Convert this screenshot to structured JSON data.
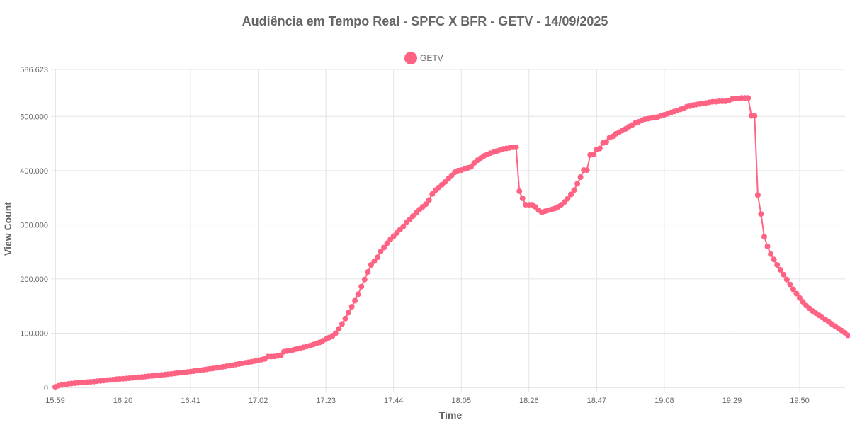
{
  "chart_data": {
    "type": "line",
    "title": "Audiência em Tempo Real - SPFC X BFR - GETV - 14/09/2025",
    "xlabel": "Time",
    "ylabel": "View Count",
    "legend": {
      "position": "top-center",
      "entries": [
        "GETV"
      ]
    },
    "grid": true,
    "ylim": [
      0,
      586623
    ],
    "y_ticks": [
      {
        "value": 0,
        "label": "0"
      },
      {
        "value": 100000,
        "label": "100.000"
      },
      {
        "value": 200000,
        "label": "200.000"
      },
      {
        "value": 300000,
        "label": "300.000"
      },
      {
        "value": 400000,
        "label": "400.000"
      },
      {
        "value": 500000,
        "label": "500.000"
      },
      {
        "value": 586623,
        "label": "586.623"
      }
    ],
    "x_start_minute": 959,
    "x_end_minute": 1204,
    "x_ticks": [
      {
        "minute": 959,
        "label": "15:59"
      },
      {
        "minute": 980,
        "label": "16:20"
      },
      {
        "minute": 1001,
        "label": "16:41"
      },
      {
        "minute": 1022,
        "label": "17:02"
      },
      {
        "minute": 1043,
        "label": "17:23"
      },
      {
        "minute": 1064,
        "label": "17:44"
      },
      {
        "minute": 1085,
        "label": "18:05"
      },
      {
        "minute": 1106,
        "label": "18:26"
      },
      {
        "minute": 1127,
        "label": "18:47"
      },
      {
        "minute": 1148,
        "label": "19:08"
      },
      {
        "minute": 1169,
        "label": "19:29"
      },
      {
        "minute": 1190,
        "label": "19:50"
      }
    ],
    "series": [
      {
        "name": "GETV",
        "color": "#ff6384",
        "interval_minutes": 1,
        "values": [
          1000,
          3000,
          4500,
          5500,
          6500,
          7200,
          7800,
          8300,
          8800,
          9300,
          9800,
          10300,
          10900,
          11500,
          12100,
          12700,
          13300,
          13900,
          14500,
          15100,
          15700,
          16000,
          16500,
          17000,
          17600,
          18200,
          18800,
          19400,
          20000,
          20600,
          21200,
          21800,
          22400,
          23000,
          23600,
          24300,
          25000,
          25700,
          26400,
          27100,
          27800,
          28500,
          29300,
          30100,
          30900,
          31700,
          32500,
          33300,
          34200,
          35100,
          36000,
          37000,
          38000,
          39000,
          40000,
          41000,
          42100,
          43200,
          44300,
          45400,
          46500,
          47600,
          48800,
          50000,
          51200,
          52500,
          57000,
          57000,
          57200,
          58000,
          59000,
          66000,
          67000,
          68000,
          69500,
          71000,
          72500,
          74000,
          75500,
          77000,
          79000,
          81000,
          83000,
          86000,
          89000,
          92000,
          95000,
          100000,
          108000,
          117000,
          127000,
          138000,
          149000,
          160000,
          172000,
          186000,
          199000,
          213000,
          226000,
          233000,
          240000,
          251000,
          258000,
          266000,
          273000,
          279000,
          285000,
          291000,
          297000,
          305000,
          310000,
          316000,
          322000,
          328000,
          333000,
          338000,
          346000,
          357000,
          364000,
          369000,
          374000,
          379000,
          385000,
          391000,
          397000,
          400000,
          401000,
          403000,
          405000,
          407000,
          414000,
          419000,
          423000,
          427000,
          430000,
          432000,
          434000,
          436000,
          438000,
          440000,
          441000,
          442000,
          443000,
          443000,
          362000,
          349000,
          337000,
          337000,
          337000,
          333000,
          327000,
          323000,
          325000,
          327000,
          328000,
          330000,
          333000,
          337000,
          342000,
          348000,
          356000,
          364000,
          376000,
          388000,
          401000,
          401000,
          429000,
          430000,
          439000,
          441000,
          451000,
          453000,
          461000,
          463000,
          468000,
          471000,
          474000,
          477000,
          481000,
          484000,
          488000,
          490000,
          493000,
          495000,
          496000,
          497000,
          498000,
          499000,
          501000,
          503000,
          505000,
          507000,
          509000,
          511000,
          513000,
          515000,
          518000,
          519000,
          521000,
          522000,
          523000,
          524000,
          525000,
          526000,
          527000,
          527000,
          528000,
          528000,
          528000,
          529000,
          532000,
          533000,
          533000,
          534000,
          534000,
          534000,
          501000,
          501000,
          355000,
          320000,
          278000,
          260000,
          246000,
          236000,
          226000,
          217000,
          208000,
          199000,
          190000,
          181000,
          173000,
          165000,
          158000,
          151000,
          146000,
          141000,
          137000,
          133000,
          129000,
          125000,
          121000,
          117000,
          113000,
          109000,
          105000,
          101000,
          96000
        ]
      }
    ]
  }
}
